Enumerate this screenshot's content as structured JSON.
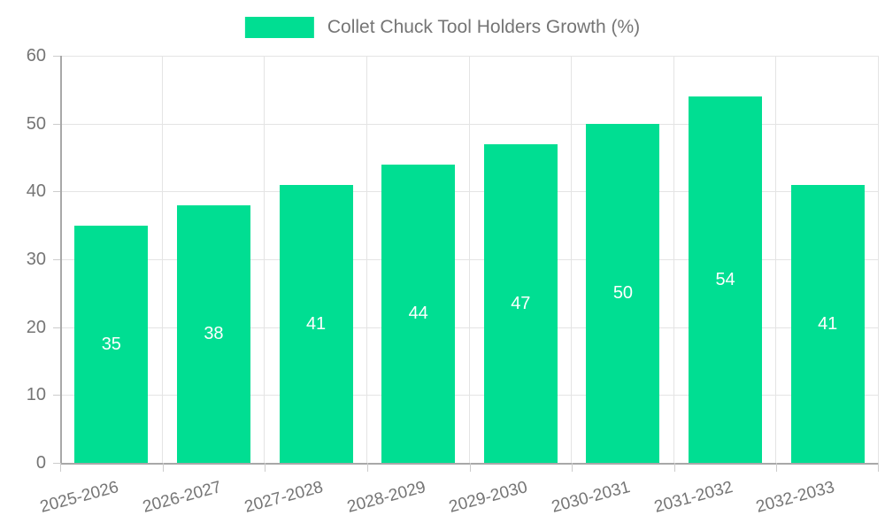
{
  "legend": {
    "label": "Collet Chuck Tool Holders Growth (%)"
  },
  "chart_data": {
    "type": "bar",
    "title": "",
    "series_name": "Collet Chuck Tool Holders Growth (%)",
    "categories": [
      "2025-2026",
      "2026-2027",
      "2027-2028",
      "2028-2029",
      "2029-2030",
      "2030-2031",
      "2031-2032",
      "2032-2033"
    ],
    "values": [
      35,
      38,
      41,
      44,
      47,
      50,
      54,
      41
    ],
    "xlabel": "",
    "ylabel": "",
    "ylim": [
      0,
      60
    ],
    "ytick_step": 10,
    "ytick_labels": [
      "0",
      "10",
      "20",
      "30",
      "40",
      "50",
      "60"
    ],
    "grid": true,
    "legend_position": "top-center",
    "x_label_rotation_deg": -15,
    "colors": {
      "bar": "#00de92",
      "value_label": "#ffffff",
      "axis_text": "#757575",
      "gridline": "#e4e4e4",
      "axis_line": "#a8a8a8",
      "tick_mark": "#cccccc",
      "background": "#ffffff"
    }
  }
}
